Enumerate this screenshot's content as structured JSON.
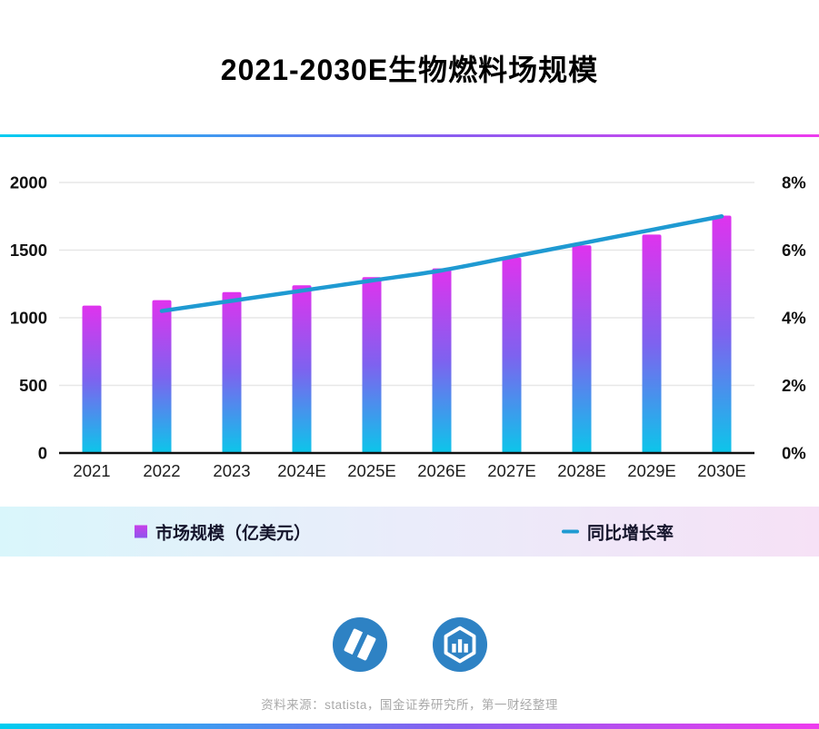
{
  "title": "2021-2030E生物燃料场规模",
  "chart_data": {
    "type": "bar+line combo",
    "categories": [
      "2021",
      "2022",
      "2023",
      "2024E",
      "2025E",
      "2026E",
      "2027E",
      "2028E",
      "2029E",
      "2030E"
    ],
    "series": [
      {
        "name": "市场规模（亿美元）",
        "type": "bar",
        "axis": "left",
        "values": [
          1090,
          1130,
          1190,
          1240,
          1300,
          1365,
          1445,
          1535,
          1615,
          1755
        ]
      },
      {
        "name": "同比增长率",
        "type": "line",
        "axis": "right",
        "unit": "%",
        "values": [
          null,
          4.2,
          4.5,
          4.8,
          5.1,
          5.4,
          5.8,
          6.2,
          6.6,
          7.0
        ]
      }
    ],
    "left_axis": {
      "ticks": [
        0,
        500,
        1000,
        1500,
        2000
      ],
      "max": 2000
    },
    "right_axis": {
      "ticks": [
        "0%",
        "2%",
        "4%",
        "6%",
        "8%"
      ],
      "max": 8
    },
    "grid": true,
    "legend_position": "bottom"
  },
  "legend": {
    "bar_label": "市场规模（亿美元）",
    "line_label": "同比增长率"
  },
  "footer": {
    "source": "资料来源：statista，国金证券研究所，第一财经整理"
  },
  "colors": {
    "bar_top": "#df33ee",
    "bar_mid": "#7e62ef",
    "bar_bottom": "#0cc6ea",
    "line": "#1f9ad2",
    "grid_line": "#e7e7e7",
    "axis_line": "#111111",
    "axis_text": "#111111",
    "logo_blue": "#2e82c4"
  }
}
